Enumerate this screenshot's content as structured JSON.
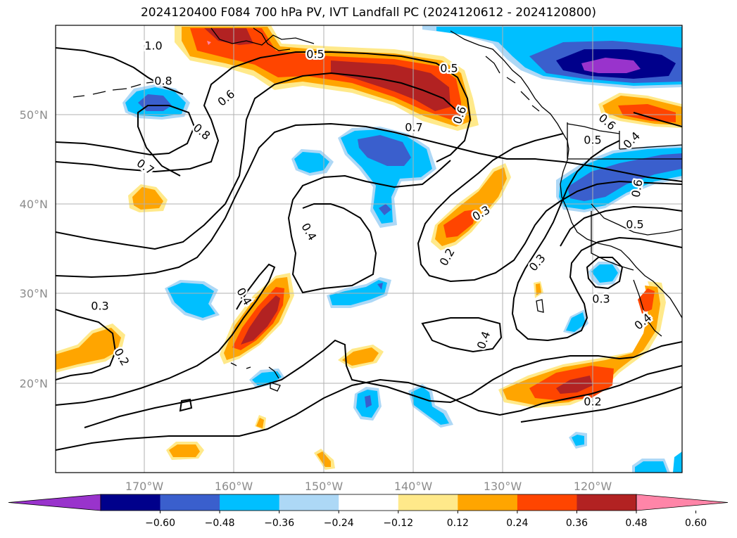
{
  "title": "2024120400 F084 700 hPa PV, IVT Landfall PC (2024120612 - 2024120800)",
  "lat_labels": [
    "50°N",
    "40°N",
    "30°N",
    "20°N"
  ],
  "lon_labels": [
    "170°W",
    "160°W",
    "150°W",
    "140°W",
    "130°W",
    "120°W"
  ],
  "contour_labels": [
    "1.0",
    "0.8",
    "0.5",
    "0.5",
    "0.6",
    "0.8",
    "0.7",
    "0.7",
    "0.6",
    "0.6",
    "0.5",
    "0.4",
    "0.6",
    "0.4",
    "0.3",
    "0.5",
    "0.2",
    "0.3",
    "0.4",
    "0.3",
    "0.3",
    "0.2",
    "0.4",
    "0.4",
    "0.2"
  ],
  "colorbar": {
    "ticks": [
      "−0.60",
      "−0.48",
      "−0.36",
      "−0.24",
      "−0.12",
      "0.12",
      "0.24",
      "0.36",
      "0.48",
      "0.60"
    ],
    "colors": [
      "#9933cc",
      "#00008b",
      "#3a5fcd",
      "#00bfff",
      "#add8f6",
      "#ffffff",
      "#ffe98a",
      "#ffa500",
      "#ff4500",
      "#b22222",
      "#ff85a8"
    ]
  },
  "fill_colors": {
    "orange_light": "#ffe98a",
    "orange": "#ffa500",
    "red_orange": "#ff4500",
    "dark_red": "#b22222",
    "pink": "#ff85a8",
    "light_blue": "#add8f6",
    "sky_blue": "#00bfff",
    "royal_blue": "#3a5fcd",
    "navy": "#00008b",
    "purple": "#9933cc"
  }
}
